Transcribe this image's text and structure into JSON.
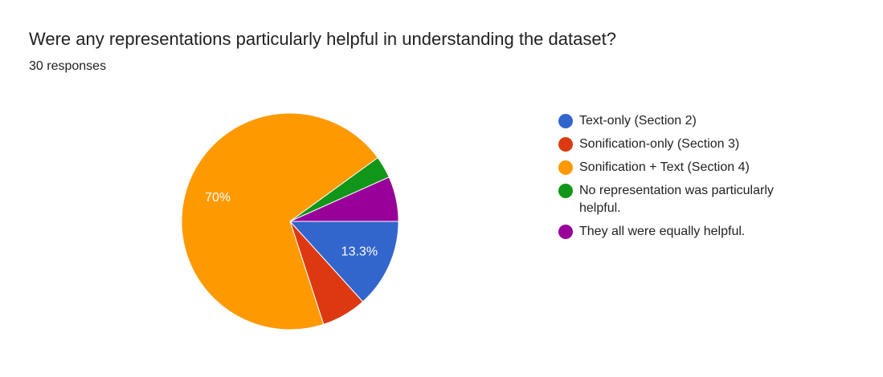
{
  "chart_data": {
    "type": "pie",
    "title": "Were any representations particularly helpful in understanding the dataset?",
    "subtitle": "30 responses",
    "categories": [
      "Text-only (Section 2)",
      "Sonification-only (Section 3)",
      "Sonification + Text (Section 4)",
      "No representation was particularly helpful.",
      "They all were equally helpful."
    ],
    "values": [
      13.3,
      6.7,
      70,
      3.3,
      6.7
    ],
    "value_labels": [
      "13.3%",
      null,
      "70%",
      null,
      null
    ],
    "colors": [
      "#3366cc",
      "#dc3912",
      "#ff9900",
      "#109618",
      "#990099"
    ],
    "legend": "right"
  }
}
